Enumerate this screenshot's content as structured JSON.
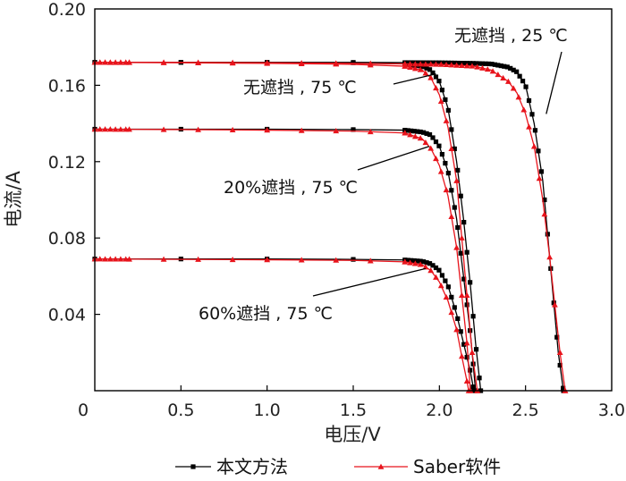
{
  "chart_data": {
    "type": "line",
    "title": "",
    "xlabel": "电压/V",
    "ylabel": "电流/A",
    "xlim": [
      0,
      3.0
    ],
    "ylim": [
      0,
      0.2
    ],
    "xticks": [
      "0",
      "0.5",
      "1.0",
      "1.5",
      "2.0",
      "2.5",
      "3.0"
    ],
    "yticks": [
      "0.04",
      "0.08",
      "0.12",
      "0.16",
      "0.20"
    ],
    "grid": false,
    "legend_position": "bottom",
    "legend": [
      "本文方法",
      "Saber软件"
    ],
    "series": [
      {
        "name": "本文方法",
        "color": "#000000",
        "marker": "square",
        "curves": [
          {
            "label": "无遮挡 , 25 ℃",
            "points": [
              [
                0,
                0.172
              ],
              [
                0.5,
                0.172
              ],
              [
                1.0,
                0.172
              ],
              [
                1.5,
                0.172
              ],
              [
                2.0,
                0.1718
              ],
              [
                2.2,
                0.1715
              ],
              [
                2.3,
                0.1712
              ],
              [
                2.4,
                0.1695
              ],
              [
                2.45,
                0.167
              ],
              [
                2.5,
                0.16
              ],
              [
                2.55,
                0.14
              ],
              [
                2.6,
                0.11
              ],
              [
                2.63,
                0.08
              ],
              [
                2.66,
                0.05
              ],
              [
                2.69,
                0.02
              ],
              [
                2.72,
                0.0
              ]
            ]
          },
          {
            "label": "无遮挡 , 75 ℃",
            "points": [
              [
                0,
                0.172
              ],
              [
                0.5,
                0.172
              ],
              [
                1.0,
                0.172
              ],
              [
                1.5,
                0.1718
              ],
              [
                1.8,
                0.1712
              ],
              [
                1.9,
                0.17
              ],
              [
                1.95,
                0.168
              ],
              [
                2.0,
                0.162
              ],
              [
                2.05,
                0.148
              ],
              [
                2.1,
                0.12
              ],
              [
                2.14,
                0.09
              ],
              [
                2.18,
                0.055
              ],
              [
                2.21,
                0.025
              ],
              [
                2.24,
                0.0
              ]
            ]
          },
          {
            "label": "20%遮挡 , 75 ℃",
            "points": [
              [
                0,
                0.137
              ],
              [
                0.5,
                0.137
              ],
              [
                1.0,
                0.137
              ],
              [
                1.5,
                0.1368
              ],
              [
                1.8,
                0.1365
              ],
              [
                1.9,
                0.1355
              ],
              [
                1.95,
                0.134
              ],
              [
                2.0,
                0.128
              ],
              [
                2.05,
                0.115
              ],
              [
                2.1,
                0.09
              ],
              [
                2.14,
                0.06
              ],
              [
                2.18,
                0.03
              ],
              [
                2.21,
                0.0
              ]
            ]
          },
          {
            "label": "60%遮挡 , 75 ℃",
            "points": [
              [
                0,
                0.069
              ],
              [
                0.5,
                0.069
              ],
              [
                1.0,
                0.069
              ],
              [
                1.5,
                0.0688
              ],
              [
                1.8,
                0.0685
              ],
              [
                1.9,
                0.0678
              ],
              [
                1.95,
                0.0665
              ],
              [
                2.0,
                0.063
              ],
              [
                2.05,
                0.055
              ],
              [
                2.1,
                0.04
              ],
              [
                2.14,
                0.025
              ],
              [
                2.18,
                0.01
              ],
              [
                2.2,
                0.0
              ]
            ]
          }
        ]
      },
      {
        "name": "Saber软件",
        "color": "#e8141c",
        "marker": "triangle",
        "curves": [
          {
            "label": "无遮挡 , 25 ℃",
            "points": [
              [
                0,
                0.172
              ],
              [
                0.5,
                0.172
              ],
              [
                1.0,
                0.1718
              ],
              [
                1.5,
                0.1715
              ],
              [
                2.0,
                0.171
              ],
              [
                2.2,
                0.17
              ],
              [
                2.3,
                0.168
              ],
              [
                2.4,
                0.162
              ],
              [
                2.45,
                0.156
              ],
              [
                2.5,
                0.145
              ],
              [
                2.55,
                0.128
              ],
              [
                2.6,
                0.1
              ],
              [
                2.64,
                0.07
              ],
              [
                2.67,
                0.045
              ],
              [
                2.7,
                0.02
              ],
              [
                2.73,
                0.0
              ]
            ]
          },
          {
            "label": "无遮挡 , 75 ℃",
            "points": [
              [
                0,
                0.172
              ],
              [
                0.5,
                0.1718
              ],
              [
                1.0,
                0.1715
              ],
              [
                1.5,
                0.171
              ],
              [
                1.8,
                0.17
              ],
              [
                1.9,
                0.168
              ],
              [
                1.95,
                0.164
              ],
              [
                2.0,
                0.155
              ],
              [
                2.05,
                0.138
              ],
              [
                2.1,
                0.11
              ],
              [
                2.13,
                0.08
              ],
              [
                2.16,
                0.05
              ],
              [
                2.19,
                0.02
              ],
              [
                2.22,
                0.0
              ]
            ]
          },
          {
            "label": "20%遮挡 , 75 ℃",
            "points": [
              [
                0,
                0.137
              ],
              [
                0.5,
                0.1368
              ],
              [
                1.0,
                0.1365
              ],
              [
                1.5,
                0.136
              ],
              [
                1.8,
                0.135
              ],
              [
                1.9,
                0.132
              ],
              [
                1.95,
                0.127
              ],
              [
                2.0,
                0.118
              ],
              [
                2.05,
                0.102
              ],
              [
                2.1,
                0.075
              ],
              [
                2.13,
                0.05
              ],
              [
                2.16,
                0.025
              ],
              [
                2.18,
                0.0
              ]
            ]
          },
          {
            "label": "60%遮挡 , 75 ℃",
            "points": [
              [
                0,
                0.069
              ],
              [
                0.5,
                0.0688
              ],
              [
                1.0,
                0.0686
              ],
              [
                1.5,
                0.0683
              ],
              [
                1.8,
                0.0675
              ],
              [
                1.9,
                0.066
              ],
              [
                1.95,
                0.063
              ],
              [
                2.0,
                0.057
              ],
              [
                2.05,
                0.047
              ],
              [
                2.1,
                0.032
              ],
              [
                2.13,
                0.018
              ],
              [
                2.16,
                0.005
              ],
              [
                2.17,
                0.0
              ]
            ]
          }
        ]
      }
    ],
    "annotations": [
      {
        "text": "无遮挡 , 25 ℃",
        "arrow_to": [
          2.62,
          0.145
        ]
      },
      {
        "text": "无遮挡 , 75 ℃",
        "arrow_to": [
          1.98,
          0.166
        ]
      },
      {
        "text": "20%遮挡 , 75 ℃",
        "arrow_to": [
          1.94,
          0.128
        ]
      },
      {
        "text": "60%遮挡 , 75 ℃",
        "arrow_to": [
          1.92,
          0.064
        ]
      }
    ]
  }
}
